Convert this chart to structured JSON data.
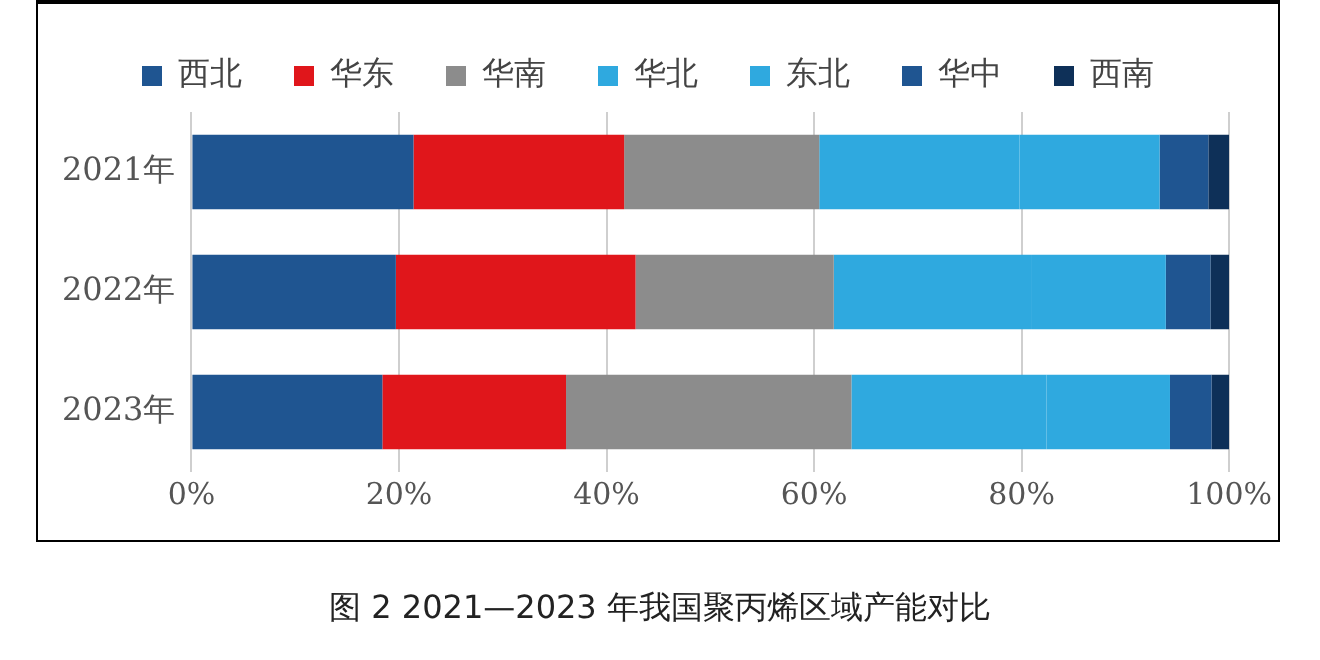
{
  "chart_data": {
    "type": "bar",
    "orientation": "horizontal",
    "stacked": true,
    "title": "图 2 2021—2023 年我国聚丙烯区域产能对比",
    "categories": [
      "2021年",
      "2022年",
      "2023年"
    ],
    "series": [
      {
        "name": "西北",
        "color": "#1f5591",
        "values": [
          21.4,
          19.7,
          18.4
        ]
      },
      {
        "name": "华东",
        "color": "#e0161b",
        "values": [
          20.3,
          23.1,
          17.7
        ]
      },
      {
        "name": "华南",
        "color": "#8c8c8c",
        "values": [
          18.8,
          19.1,
          27.5
        ]
      },
      {
        "name": "华北",
        "color": "#2fa9df",
        "values": [
          19.3,
          19.1,
          18.8
        ]
      },
      {
        "name": "东北",
        "color": "#2fa9df",
        "values": [
          13.5,
          12.9,
          11.9
        ]
      },
      {
        "name": "华中",
        "color": "#1f5591",
        "values": [
          4.7,
          4.3,
          4.0
        ]
      },
      {
        "name": "西南",
        "color": "#0e3058",
        "values": [
          2.0,
          1.8,
          1.7
        ]
      }
    ],
    "xlim": [
      0,
      100
    ],
    "xticks": [
      {
        "value": 0,
        "label": "0%"
      },
      {
        "value": 20,
        "label": "20%"
      },
      {
        "value": 40,
        "label": "40%"
      },
      {
        "value": 60,
        "label": "60%"
      },
      {
        "value": 80,
        "label": "80%"
      },
      {
        "value": 100,
        "label": "100%"
      }
    ],
    "grid": "x",
    "legend": "top"
  }
}
